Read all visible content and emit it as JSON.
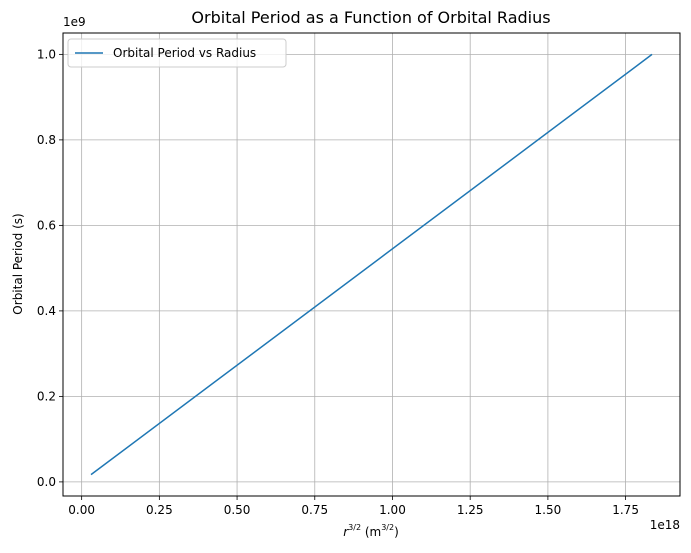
{
  "chart_data": {
    "type": "line",
    "title": "Orbital Period as a Function of Orbital Radius",
    "xlabel_base": "r",
    "xlabel_sup": "3/2",
    "xlabel_unit_open": " (m",
    "xlabel_unit_sup": "3/2",
    "xlabel_unit_close": ")",
    "ylabel": "Orbital Period (s)",
    "x_offset_label": "1e18",
    "y_offset_label": "1e9",
    "xlim": [
      -0.06,
      1.925
    ],
    "ylim": [
      -0.033,
      1.05
    ],
    "xticks": [
      0.0,
      0.25,
      0.5,
      0.75,
      1.0,
      1.25,
      1.5,
      1.75
    ],
    "xtick_labels": [
      "0.00",
      "0.25",
      "0.50",
      "0.75",
      "1.00",
      "1.25",
      "1.50",
      "1.75"
    ],
    "yticks": [
      0.0,
      0.2,
      0.4,
      0.6,
      0.8,
      1.0
    ],
    "ytick_labels": [
      "0.0",
      "0.2",
      "0.4",
      "0.6",
      "0.8",
      "1.0"
    ],
    "grid": true,
    "legend_position": "upper-left",
    "series": [
      {
        "name": "Orbital Period vs Radius",
        "color": "#1f77b4",
        "x": [
          0.03,
          1.835
        ],
        "y": [
          0.017,
          1.0
        ]
      }
    ]
  }
}
